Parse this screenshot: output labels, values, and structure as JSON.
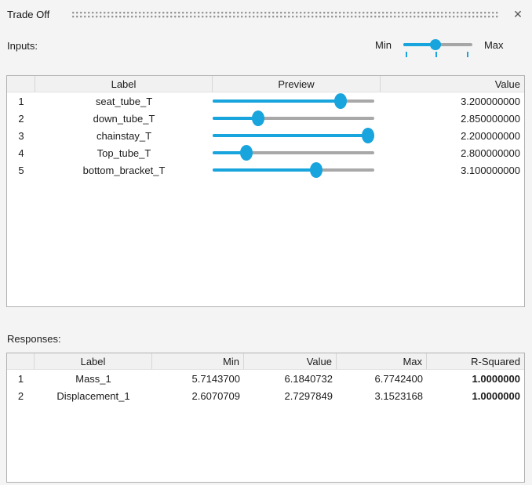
{
  "window": {
    "title": "Trade Off",
    "close_label": "✕"
  },
  "colors": {
    "accent": "#18a4dc",
    "rail": "#a8a8a8"
  },
  "inputs": {
    "section_label": "Inputs:",
    "range_slider": {
      "min_label": "Min",
      "max_label": "Max",
      "position": 0.47
    },
    "table": {
      "headers": {
        "index": "",
        "label": "Label",
        "preview": "Preview",
        "value": "Value"
      },
      "rows": [
        {
          "index": "1",
          "label": "seat_tube_T",
          "slider": 0.79,
          "value": "3.200000000"
        },
        {
          "index": "2",
          "label": "down_tube_T",
          "slider": 0.28,
          "value": "2.850000000"
        },
        {
          "index": "3",
          "label": "chainstay_T",
          "slider": 0.96,
          "value": "2.200000000"
        },
        {
          "index": "4",
          "label": "Top_tube_T",
          "slider": 0.21,
          "value": "2.800000000"
        },
        {
          "index": "5",
          "label": "bottom_bracket_T",
          "slider": 0.64,
          "value": "3.100000000"
        }
      ]
    }
  },
  "responses": {
    "section_label": "Responses:",
    "table": {
      "headers": {
        "index": "",
        "label": "Label",
        "min": "Min",
        "value": "Value",
        "max": "Max",
        "r_squared": "R-Squared"
      },
      "rows": [
        {
          "index": "1",
          "label": "Mass_1",
          "min": "5.7143700",
          "value": "6.1840732",
          "max": "6.7742400",
          "r_squared": "1.0000000"
        },
        {
          "index": "2",
          "label": "Displacement_1",
          "min": "2.6070709",
          "value": "2.7297849",
          "max": "3.1523168",
          "r_squared": "1.0000000"
        }
      ]
    }
  }
}
